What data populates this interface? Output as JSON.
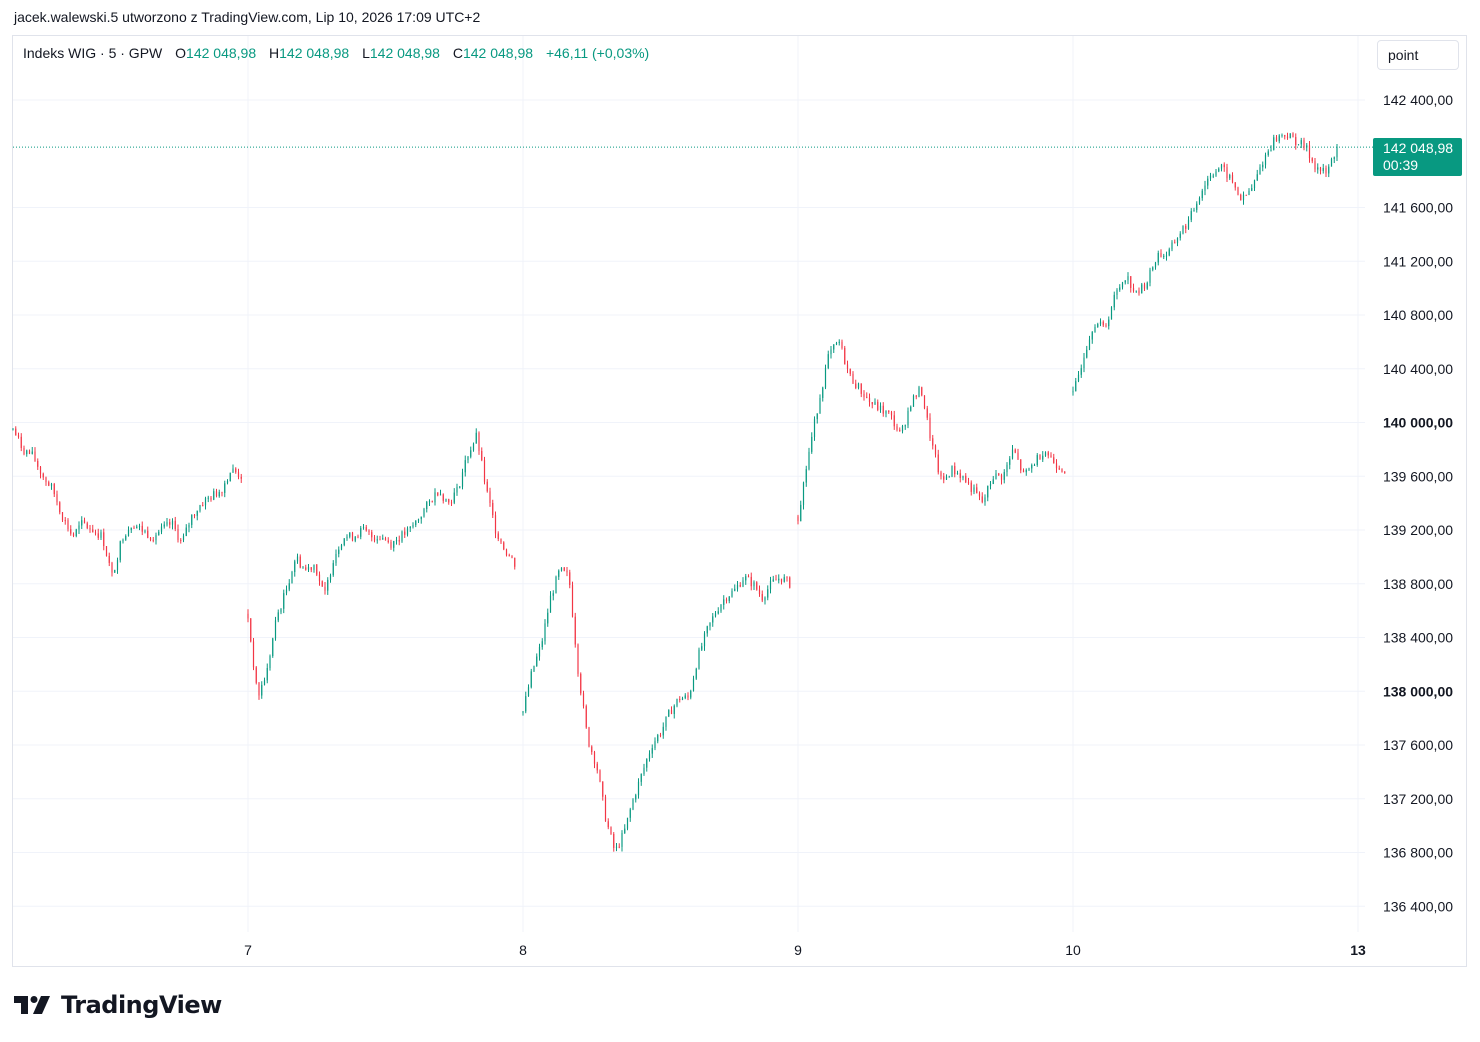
{
  "caption": "jacek.walewski.5 utworzono z TradingView.com, Lip 10, 2026 17:09 UTC+2",
  "legend": {
    "symbol": "Indeks WIG · 5 · GPW",
    "open_label": "O",
    "open_value": "142 048,98",
    "high_label": "H",
    "high_value": "142 048,98",
    "low_label": "L",
    "low_value": "142 048,98",
    "close_label": "C",
    "close_value": "142 048,98",
    "change": "+46,11 (+0,03%)"
  },
  "scale_mode": "point",
  "last_price": {
    "value": "142 048,98",
    "countdown": "00:39"
  },
  "logo_text": "TradingView",
  "colors": {
    "up": "#089981",
    "down": "#F23645",
    "grid": "#f0f3fa",
    "text": "#131722"
  },
  "chart_data": {
    "type": "candlestick",
    "y_ticks": [
      {
        "label": "142 400,00",
        "value": 142400,
        "bold": false
      },
      {
        "label": "141 600,00",
        "value": 141600,
        "bold": false
      },
      {
        "label": "141 200,00",
        "value": 141200,
        "bold": false
      },
      {
        "label": "140 800,00",
        "value": 140800,
        "bold": false
      },
      {
        "label": "140 400,00",
        "value": 140400,
        "bold": false
      },
      {
        "label": "140 000,00",
        "value": 140000,
        "bold": true
      },
      {
        "label": "139 600,00",
        "value": 139600,
        "bold": false
      },
      {
        "label": "139 200,00",
        "value": 139200,
        "bold": false
      },
      {
        "label": "138 800,00",
        "value": 138800,
        "bold": false
      },
      {
        "label": "138 400,00",
        "value": 138400,
        "bold": false
      },
      {
        "label": "138 000,00",
        "value": 138000,
        "bold": true
      },
      {
        "label": "137 600,00",
        "value": 137600,
        "bold": false
      },
      {
        "label": "137 200,00",
        "value": 137200,
        "bold": false
      },
      {
        "label": "136 800,00",
        "value": 136800,
        "bold": false
      },
      {
        "label": "136 400,00",
        "value": 136400,
        "bold": false
      }
    ],
    "y_range": [
      136200,
      142600
    ],
    "x_ticks": [
      {
        "label": "7",
        "session": 1,
        "bold": false
      },
      {
        "label": "8",
        "session": 2,
        "bold": false
      },
      {
        "label": "9",
        "session": 3,
        "bold": false
      },
      {
        "label": "10",
        "session": 4,
        "bold": false
      },
      {
        "label": "13",
        "session": 5,
        "bold": true
      }
    ],
    "last_price": 142048.98,
    "sessions": [
      {
        "day": "6",
        "path": [
          139950,
          139800,
          139750,
          139600,
          139500,
          139300,
          139150,
          139250,
          139200,
          139150,
          138850,
          139150,
          139250,
          139200,
          139150,
          139200,
          139250,
          139100,
          139300,
          139400,
          139450,
          139500,
          139650,
          139600
        ]
      },
      {
        "day": "7",
        "path": [
          138550,
          137950,
          138150,
          138550,
          138750,
          139000,
          138900,
          138950,
          138700,
          139000,
          139150,
          139150,
          139200,
          139150,
          139150,
          139100,
          139150,
          139200,
          139300,
          139400,
          139500,
          139400,
          139500,
          139750,
          139900,
          139500,
          139200,
          139050,
          138950
        ]
      },
      {
        "day": "8",
        "path": [
          137850,
          138150,
          138350,
          138700,
          138900,
          138850,
          138150,
          137650,
          137450,
          137050,
          136800,
          136950,
          137200,
          137400,
          137600,
          137700,
          137850,
          137950,
          137950,
          138250,
          138450,
          138600,
          138700,
          138750,
          138850,
          138800,
          138700,
          138800,
          138850,
          138800
        ]
      },
      {
        "day": "9",
        "path": [
          139300,
          139750,
          140150,
          140500,
          140600,
          140350,
          140250,
          140150,
          140100,
          140050,
          139900,
          140150,
          140250,
          139850,
          139550,
          139650,
          139600,
          139500,
          139400,
          139600,
          139600,
          139800,
          139600,
          139700,
          139800,
          139700,
          139650
        ]
      },
      {
        "day": "10",
        "path": [
          140200,
          140500,
          140750,
          140700,
          140950,
          141100,
          140950,
          141050,
          141250,
          141250,
          141400,
          141500,
          141700,
          141850,
          141900,
          141800,
          141650,
          141750,
          141950,
          142100,
          142150,
          142100,
          142050,
          141900,
          141850,
          142049
        ]
      }
    ]
  }
}
